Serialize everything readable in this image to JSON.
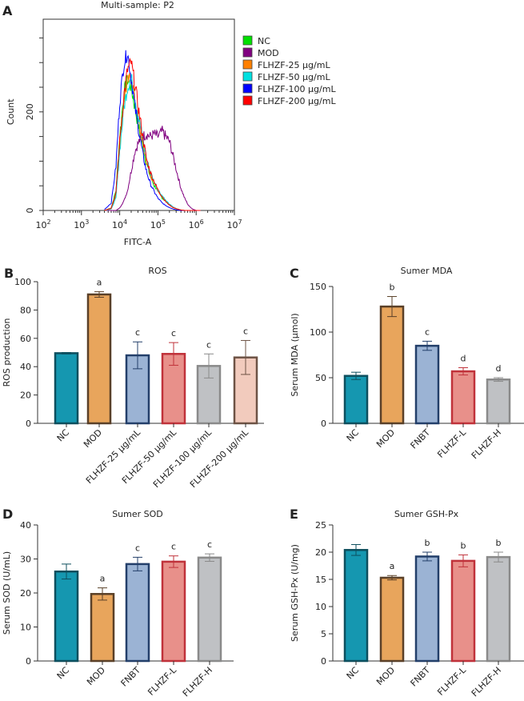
{
  "chart_data": [
    {
      "panel": "A",
      "type": "line",
      "title": "Multi-sample: P2",
      "xlabel": "FITC-A",
      "ylabel": "Count",
      "xscale": "log",
      "xlim": [
        100,
        10000000
      ],
      "ylim": [
        0,
        388
      ],
      "xticks": [
        "10^2",
        "10^3",
        "10^4",
        "10^5",
        "10^6",
        "10^7"
      ],
      "yticks": [
        "0",
        "200"
      ],
      "legend_position": "right",
      "x": [
        4000,
        6000,
        8000,
        10000,
        13000,
        16000,
        20000,
        25000,
        32000,
        40000,
        50000,
        63000,
        80000,
        100000,
        130000,
        160000,
        200000,
        250000,
        320000,
        400000,
        500000,
        630000,
        800000,
        1000000,
        1300000
      ],
      "series": [
        {
          "name": "NC",
          "color": "#00e000",
          "values": [
            0,
            5,
            40,
            150,
            240,
            265,
            250,
            210,
            165,
            130,
            95,
            70,
            50,
            40,
            25,
            18,
            12,
            6,
            3,
            1,
            0,
            0,
            0,
            0,
            0
          ]
        },
        {
          "name": "MOD",
          "color": "#800080",
          "values": [
            0,
            0,
            0,
            5,
            20,
            40,
            80,
            120,
            140,
            150,
            155,
            150,
            155,
            150,
            160,
            150,
            140,
            110,
            75,
            45,
            25,
            10,
            3,
            0,
            0
          ]
        },
        {
          "name": "FLHZF-25 μg/mL",
          "color": "#ff8000",
          "values": [
            0,
            3,
            30,
            130,
            225,
            260,
            270,
            225,
            175,
            135,
            100,
            72,
            55,
            40,
            28,
            20,
            12,
            6,
            3,
            1,
            0,
            0,
            0,
            0,
            0
          ]
        },
        {
          "name": "FLHZF-50 μg/mL",
          "color": "#00e0e0",
          "values": [
            0,
            3,
            25,
            120,
            210,
            250,
            270,
            230,
            185,
            145,
            105,
            78,
            58,
            42,
            30,
            20,
            13,
            7,
            3,
            1,
            0,
            0,
            0,
            0,
            0
          ]
        },
        {
          "name": "FLHZF-100 μg/mL",
          "color": "#0000ff",
          "values": [
            2,
            15,
            90,
            220,
            300,
            320,
            270,
            210,
            160,
            115,
            80,
            55,
            38,
            25,
            15,
            10,
            6,
            3,
            1,
            0,
            0,
            0,
            0,
            0,
            0
          ]
        },
        {
          "name": "FLHZF-200 μg/mL",
          "color": "#ff0000",
          "values": [
            0,
            5,
            35,
            140,
            235,
            285,
            300,
            255,
            200,
            150,
            105,
            78,
            58,
            42,
            28,
            18,
            11,
            6,
            3,
            1,
            0,
            0,
            0,
            0,
            0
          ]
        }
      ]
    },
    {
      "panel": "B",
      "type": "bar",
      "title": "ROS",
      "ylabel": "ROS production",
      "ylim": [
        0,
        100
      ],
      "yticks": [
        0,
        20,
        40,
        60,
        80,
        100
      ],
      "categories": [
        "NC",
        "MOD",
        "FLHZF-25 μg/mL",
        "FLHZF-50 μg/mL",
        "FLHZF-100 μg/mL",
        "FLHZF-200 μg/mL"
      ],
      "values": [
        49.5,
        91,
        48,
        49,
        40.5,
        46.5
      ],
      "errors": [
        0.5,
        2,
        9.5,
        8,
        8.5,
        12
      ],
      "letters": [
        "",
        "a",
        "c",
        "c",
        "c",
        "c"
      ],
      "fills": [
        "#1597b0",
        "#e8a55c",
        "#9bb3d4",
        "#e8908a",
        "#bfc1c4",
        "#f2cbbd"
      ],
      "strokes": [
        "#0d4f5e",
        "#5a4028",
        "#233f6a",
        "#c0323a",
        "#8a8a8a",
        "#6d5345"
      ]
    },
    {
      "panel": "C",
      "type": "bar",
      "title": "Sumer MDA",
      "ylabel": "Serum MDA (μmol)",
      "ylim": [
        0,
        150
      ],
      "yticks": [
        0,
        50,
        100,
        150
      ],
      "categories": [
        "NC",
        "MOD",
        "FNBT",
        "FLHZF-L",
        "FLHZF-H"
      ],
      "values": [
        52,
        128,
        85,
        57,
        48
      ],
      "errors": [
        4,
        11,
        5,
        4,
        2
      ],
      "letters": [
        "",
        "b",
        "c",
        "d",
        "d"
      ],
      "fills": [
        "#1597b0",
        "#e8a55c",
        "#9bb3d4",
        "#e8908a",
        "#bfc1c4"
      ],
      "strokes": [
        "#0d4f5e",
        "#5a4028",
        "#233f6a",
        "#c0323a",
        "#8a8a8a"
      ]
    },
    {
      "panel": "D",
      "type": "bar",
      "title": "Sumer SOD",
      "ylabel": "Serum SOD (U/mL)",
      "ylim": [
        0,
        40
      ],
      "yticks": [
        0,
        10,
        20,
        30,
        40
      ],
      "categories": [
        "NC",
        "MOD",
        "FNBT",
        "FLHZF-L",
        "FLHZF-H"
      ],
      "values": [
        26.3,
        19.7,
        28.5,
        29.2,
        30.4
      ],
      "errors": [
        2.2,
        1.8,
        2,
        1.7,
        1.1
      ],
      "letters": [
        "",
        "a",
        "c",
        "c",
        "c"
      ],
      "fills": [
        "#1597b0",
        "#e8a55c",
        "#9bb3d4",
        "#e8908a",
        "#bfc1c4"
      ],
      "strokes": [
        "#0d4f5e",
        "#5a4028",
        "#233f6a",
        "#c0323a",
        "#8a8a8a"
      ]
    },
    {
      "panel": "E",
      "type": "bar",
      "title": "Sumer GSH-Px",
      "ylabel": "Serum GSH-Px (U/mg)",
      "ylim": [
        0,
        25
      ],
      "yticks": [
        0,
        5,
        10,
        15,
        20,
        25
      ],
      "categories": [
        "NC",
        "MOD",
        "FNBT",
        "FLHZF-L",
        "FLHZF-H"
      ],
      "values": [
        20.4,
        15.3,
        19.2,
        18.4,
        19.1
      ],
      "errors": [
        1,
        0.4,
        0.8,
        1.1,
        0.9
      ],
      "letters": [
        "",
        "a",
        "b",
        "b",
        "b"
      ],
      "fills": [
        "#1597b0",
        "#e8a55c",
        "#9bb3d4",
        "#e8908a",
        "#bfc1c4"
      ],
      "strokes": [
        "#0d4f5e",
        "#5a4028",
        "#233f6a",
        "#c0323a",
        "#8a8a8a"
      ]
    }
  ]
}
